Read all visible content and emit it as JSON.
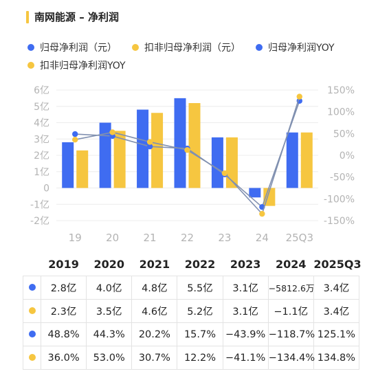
{
  "header": {
    "title": "南网能源 – 净利润"
  },
  "colors": {
    "blue": "#3F6CF1",
    "yellow": "#F6C640",
    "line": "#8090B0",
    "accent": "#F6C640"
  },
  "legend": [
    {
      "label": "归母净利润（元）",
      "color": "#3F6CF1",
      "icon": "dot"
    },
    {
      "label": "扣非归母净利润（元）",
      "color": "#F6C640",
      "icon": "dot"
    },
    {
      "label": "归母净利润YOY",
      "color": "#3F6CF1",
      "icon": "dot"
    },
    {
      "label": "扣非归母净利润YOY",
      "color": "#F6C640",
      "icon": "dot"
    }
  ],
  "chart_data": {
    "type": "bar",
    "categories": [
      "19",
      "20",
      "21",
      "22",
      "23",
      "24",
      "25Q3"
    ],
    "series": [
      {
        "name": "归母净利润（元）",
        "type": "bar",
        "axis": "left",
        "values": [
          2.8,
          4.0,
          4.8,
          5.5,
          3.1,
          -0.58,
          3.4
        ]
      },
      {
        "name": "扣非归母净利润（元）",
        "type": "bar",
        "axis": "left",
        "values": [
          2.3,
          3.5,
          4.6,
          5.2,
          3.1,
          -1.1,
          3.4
        ]
      },
      {
        "name": "归母净利润YOY",
        "type": "line",
        "axis": "right",
        "values": [
          48.8,
          44.3,
          20.2,
          15.7,
          -43.9,
          -118.7,
          125.1
        ]
      },
      {
        "name": "扣非归母净利润YOY",
        "type": "line",
        "axis": "right",
        "values": [
          36.0,
          53.0,
          30.7,
          12.2,
          -41.1,
          -134.4,
          134.8
        ]
      }
    ],
    "y_left": {
      "ticks": [
        "6亿",
        "5亿",
        "4亿",
        "3亿",
        "2亿",
        "1亿",
        "0",
        "-1亿",
        "-2亿"
      ],
      "range": [
        -2,
        6
      ]
    },
    "y_right": {
      "ticks": [
        "150%",
        "100%",
        "50%",
        "0%",
        "-50%",
        "-100%",
        "-150%"
      ],
      "range": [
        -150,
        150
      ]
    },
    "grid": true
  },
  "table": {
    "headers": [
      "2019",
      "2020",
      "2021",
      "2022",
      "2023",
      "2024",
      "2025Q3"
    ],
    "rows": [
      {
        "color": "#3F6CF1",
        "cells": [
          "2.8亿",
          "4.0亿",
          "4.8亿",
          "5.5亿",
          "3.1亿",
          "−5812.6万",
          "3.4亿"
        ]
      },
      {
        "color": "#F6C640",
        "cells": [
          "2.3亿",
          "3.5亿",
          "4.6亿",
          "5.2亿",
          "3.1亿",
          "−1.1亿",
          "3.4亿"
        ]
      },
      {
        "color": "#3F6CF1",
        "cells": [
          "48.8%",
          "44.3%",
          "20.2%",
          "15.7%",
          "−43.9%",
          "−118.7%",
          "125.1%"
        ]
      },
      {
        "color": "#F6C640",
        "cells": [
          "36.0%",
          "53.0%",
          "30.7%",
          "12.2%",
          "−41.1%",
          "−134.4%",
          "134.8%"
        ]
      }
    ]
  }
}
